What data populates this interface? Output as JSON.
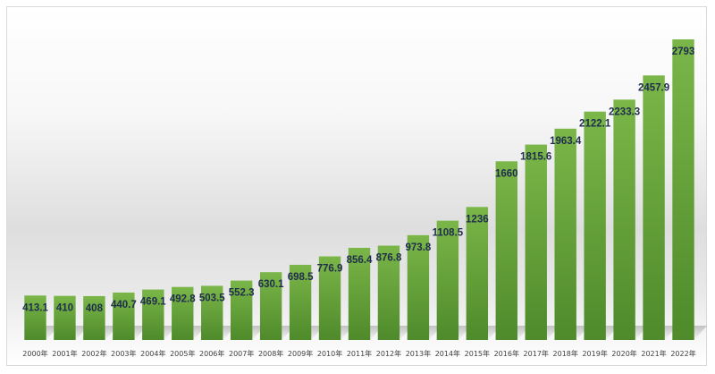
{
  "chart_data": {
    "type": "bar",
    "title": "",
    "xlabel": "",
    "ylabel": "",
    "categories": [
      "2000年",
      "2001年",
      "2002年",
      "2003年",
      "2004年",
      "2005年",
      "2006年",
      "2007年",
      "2008年",
      "2009年",
      "2010年",
      "2011年",
      "2012年",
      "2013年",
      "2014年",
      "2015年",
      "2016年",
      "2017年",
      "2018年",
      "2019年",
      "2020年",
      "2021年",
      "2022年"
    ],
    "values": [
      413.1,
      410,
      408,
      440.7,
      469.1,
      492.8,
      503.5,
      552.3,
      630.1,
      698.5,
      776.9,
      856.4,
      876.8,
      973.8,
      1108.5,
      1236,
      1660,
      1815.6,
      1963.4,
      2122.1,
      2233.3,
      2457.9,
      2793
    ],
    "value_labels": [
      "413.1",
      "410",
      "408",
      "440.7",
      "469.1",
      "492.8",
      "503.5",
      "552.3",
      "630.1",
      "698.5",
      "776.9",
      "856.4",
      "876.8",
      "973.8",
      "1108.5",
      "1236",
      "1660",
      "1815.6",
      "1963.4",
      "2122.1",
      "2233.3",
      "2457.9",
      "2793"
    ],
    "ylim": [
      0,
      2793
    ],
    "grid": false,
    "legend": "none",
    "bar_color_top": "#7ab648",
    "bar_color_bottom": "#4f8a2b",
    "label_color": "#1f2d4d"
  }
}
